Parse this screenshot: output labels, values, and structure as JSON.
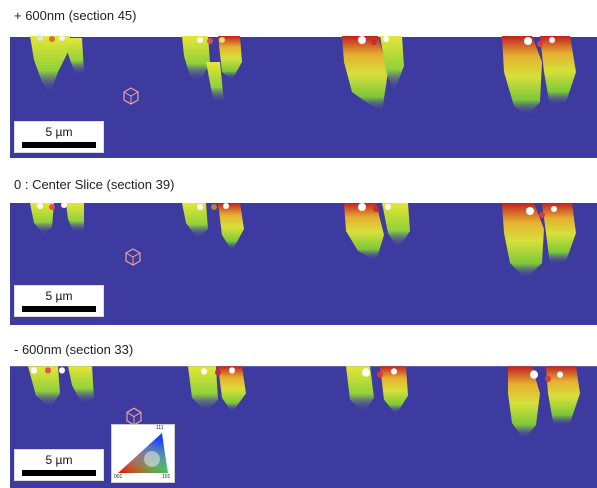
{
  "panels": [
    {
      "title": "+ 600nm (section 45)",
      "scale_label": "5 µm"
    },
    {
      "title": "0 : Center Slice (section 39)",
      "scale_label": "5 µm"
    },
    {
      "title": "- 600nm (section 33)",
      "scale_label": "5 µm"
    }
  ],
  "ipf_key": {
    "label_001": "001",
    "label_101": "101",
    "label_111": "111"
  },
  "colors": {
    "matrix": "#3d3aa0",
    "deformation_green": "#8fd13a",
    "deformation_yellow": "#e6e636",
    "deformation_red": "#c22020",
    "scalebar": "#000000"
  }
}
